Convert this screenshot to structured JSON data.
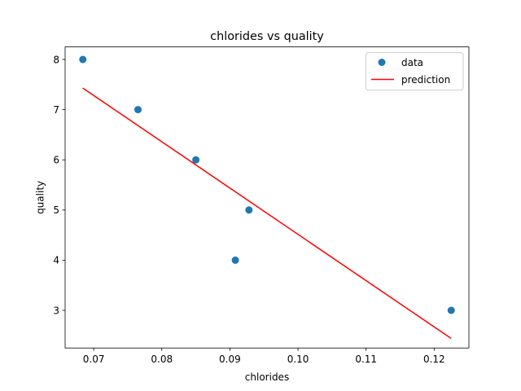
{
  "chart_data": {
    "type": "scatter",
    "title": "chlorides vs quality",
    "xlabel": "chlorides",
    "ylabel": "quality",
    "xlim": [
      0.0658,
      0.1251
    ],
    "ylim": [
      2.25,
      8.25
    ],
    "xticks": [
      0.07,
      0.08,
      0.09,
      0.1,
      0.11,
      0.12
    ],
    "xtick_labels": [
      "0.07",
      "0.08",
      "0.09",
      "0.10",
      "0.11",
      "0.12"
    ],
    "yticks": [
      3,
      4,
      5,
      6,
      7,
      8
    ],
    "ytick_labels": [
      "3",
      "4",
      "5",
      "6",
      "7",
      "8"
    ],
    "grid": false,
    "legend_position": "top-right",
    "series": [
      {
        "name": "data",
        "kind": "scatter",
        "color": "#1f77b4",
        "points": [
          {
            "x": 0.0684,
            "y": 8
          },
          {
            "x": 0.0765,
            "y": 7
          },
          {
            "x": 0.085,
            "y": 6
          },
          {
            "x": 0.0928,
            "y": 5
          },
          {
            "x": 0.0908,
            "y": 4
          },
          {
            "x": 0.1225,
            "y": 3
          }
        ]
      },
      {
        "name": "prediction",
        "kind": "line",
        "color": "#ff0000",
        "points": [
          {
            "x": 0.0684,
            "y": 7.43
          },
          {
            "x": 0.1225,
            "y": 2.44
          }
        ]
      }
    ]
  }
}
